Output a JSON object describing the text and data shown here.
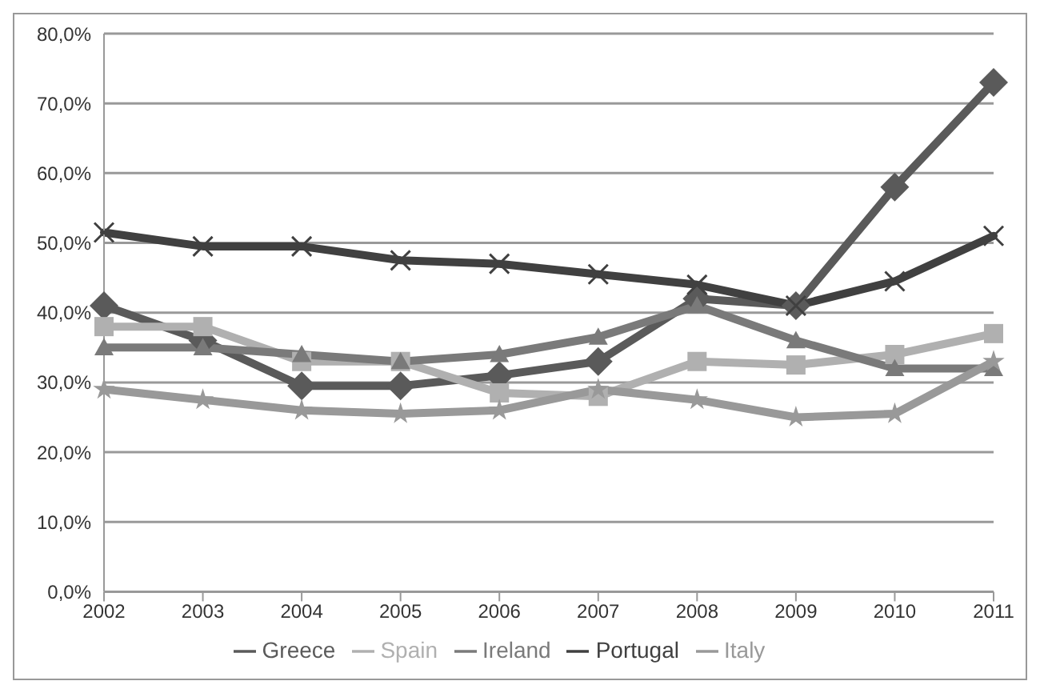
{
  "chart_data": {
    "type": "line",
    "categories": [
      "2002",
      "2003",
      "2004",
      "2005",
      "2006",
      "2007",
      "2008",
      "2009",
      "2010",
      "2011"
    ],
    "series": [
      {
        "name": "Greece",
        "color": "#5a5a5a",
        "marker": "diamond",
        "values": [
          41,
          36,
          29.5,
          29.5,
          31,
          33,
          42,
          41,
          58,
          73
        ]
      },
      {
        "name": "Spain",
        "color": "#b0b0b0",
        "marker": "square",
        "values": [
          38,
          38,
          33,
          33,
          28.5,
          28,
          33,
          32.5,
          34,
          37
        ]
      },
      {
        "name": "Ireland",
        "color": "#7a7a7a",
        "marker": "triangle",
        "values": [
          35,
          35,
          34,
          33,
          34,
          36.5,
          41,
          36,
          32,
          32
        ]
      },
      {
        "name": "Portugal",
        "color": "#404040",
        "marker": "cross",
        "values": [
          51.5,
          49.5,
          49.5,
          47.5,
          47,
          45.5,
          44,
          41,
          44.5,
          51
        ]
      },
      {
        "name": "Italy",
        "color": "#999999",
        "marker": "star",
        "values": [
          29,
          27.5,
          26,
          25.5,
          26,
          29,
          27.5,
          25,
          25.5,
          33
        ]
      }
    ],
    "ylim": [
      0,
      80
    ],
    "yticks": [
      {
        "value": 0,
        "label": "0,0%"
      },
      {
        "value": 10,
        "label": "10,0%"
      },
      {
        "value": 20,
        "label": "20,0%"
      },
      {
        "value": 30,
        "label": "30,0%"
      },
      {
        "value": 40,
        "label": "40,0%"
      },
      {
        "value": 50,
        "label": "50,0%"
      },
      {
        "value": 60,
        "label": "60,0%"
      },
      {
        "value": 70,
        "label": "70,0%"
      },
      {
        "value": 80,
        "label": "80,0%"
      }
    ],
    "grid": "y",
    "legend": "bottom"
  }
}
